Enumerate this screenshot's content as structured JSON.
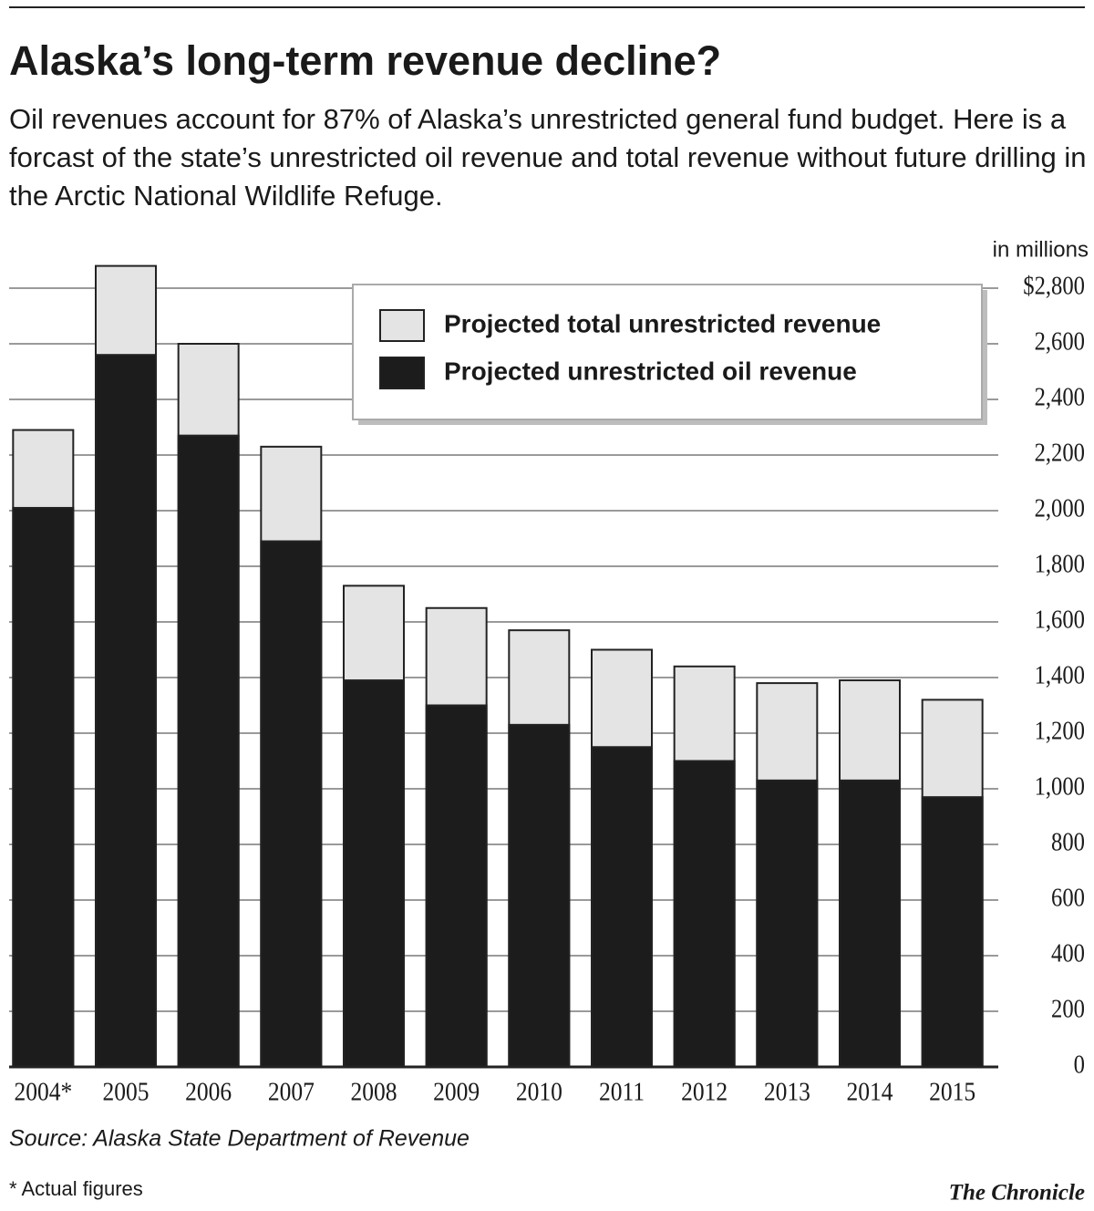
{
  "chart_data": {
    "type": "bar",
    "layout": "overlap",
    "title": "Alaska’s long-term revenue decline?",
    "subtitle": "Oil revenues account for 87% of Alaska’s unrestricted general fund budget. Here is a forcast of the state’s unrestricted oil revenue and total revenue without future drilling in the Arctic National Wildlife Refuge.",
    "y_axis_label": "in millions",
    "categories": [
      "2004*",
      "2005",
      "2006",
      "2007",
      "2008",
      "2009",
      "2010",
      "2011",
      "2012",
      "2013",
      "2014",
      "2015"
    ],
    "series": [
      {
        "name": "Projected total unrestricted revenue",
        "color": "#e4e4e4",
        "values": [
          2290,
          2880,
          2600,
          2230,
          1730,
          1650,
          1570,
          1500,
          1440,
          1380,
          1390,
          1320
        ]
      },
      {
        "name": "Projected unrestricted oil revenue",
        "color": "#1c1c1c",
        "values": [
          2010,
          2560,
          2270,
          1890,
          1390,
          1300,
          1230,
          1150,
          1100,
          1030,
          1030,
          970
        ]
      }
    ],
    "ylim": [
      0,
      2800
    ],
    "yticks": [
      0,
      200,
      400,
      600,
      800,
      {
        "value": 1000,
        "label": "1,000"
      },
      {
        "value": 1200,
        "label": "1,200"
      },
      {
        "value": 1400,
        "label": "1,400"
      },
      {
        "value": 1600,
        "label": "1,600"
      },
      {
        "value": 1800,
        "label": "1,800"
      },
      {
        "value": 2000,
        "label": "2,000"
      },
      {
        "value": 2200,
        "label": "2,200"
      },
      {
        "value": 2400,
        "label": "2,400"
      },
      {
        "value": 2600,
        "label": "2,600"
      },
      {
        "value": 2800,
        "label": "$2,800"
      }
    ],
    "grid": true,
    "legend": "top-right",
    "source": "Source: Alaska State Department of Revenue",
    "footnote": "* Actual figures",
    "credit": "The Chronicle"
  }
}
